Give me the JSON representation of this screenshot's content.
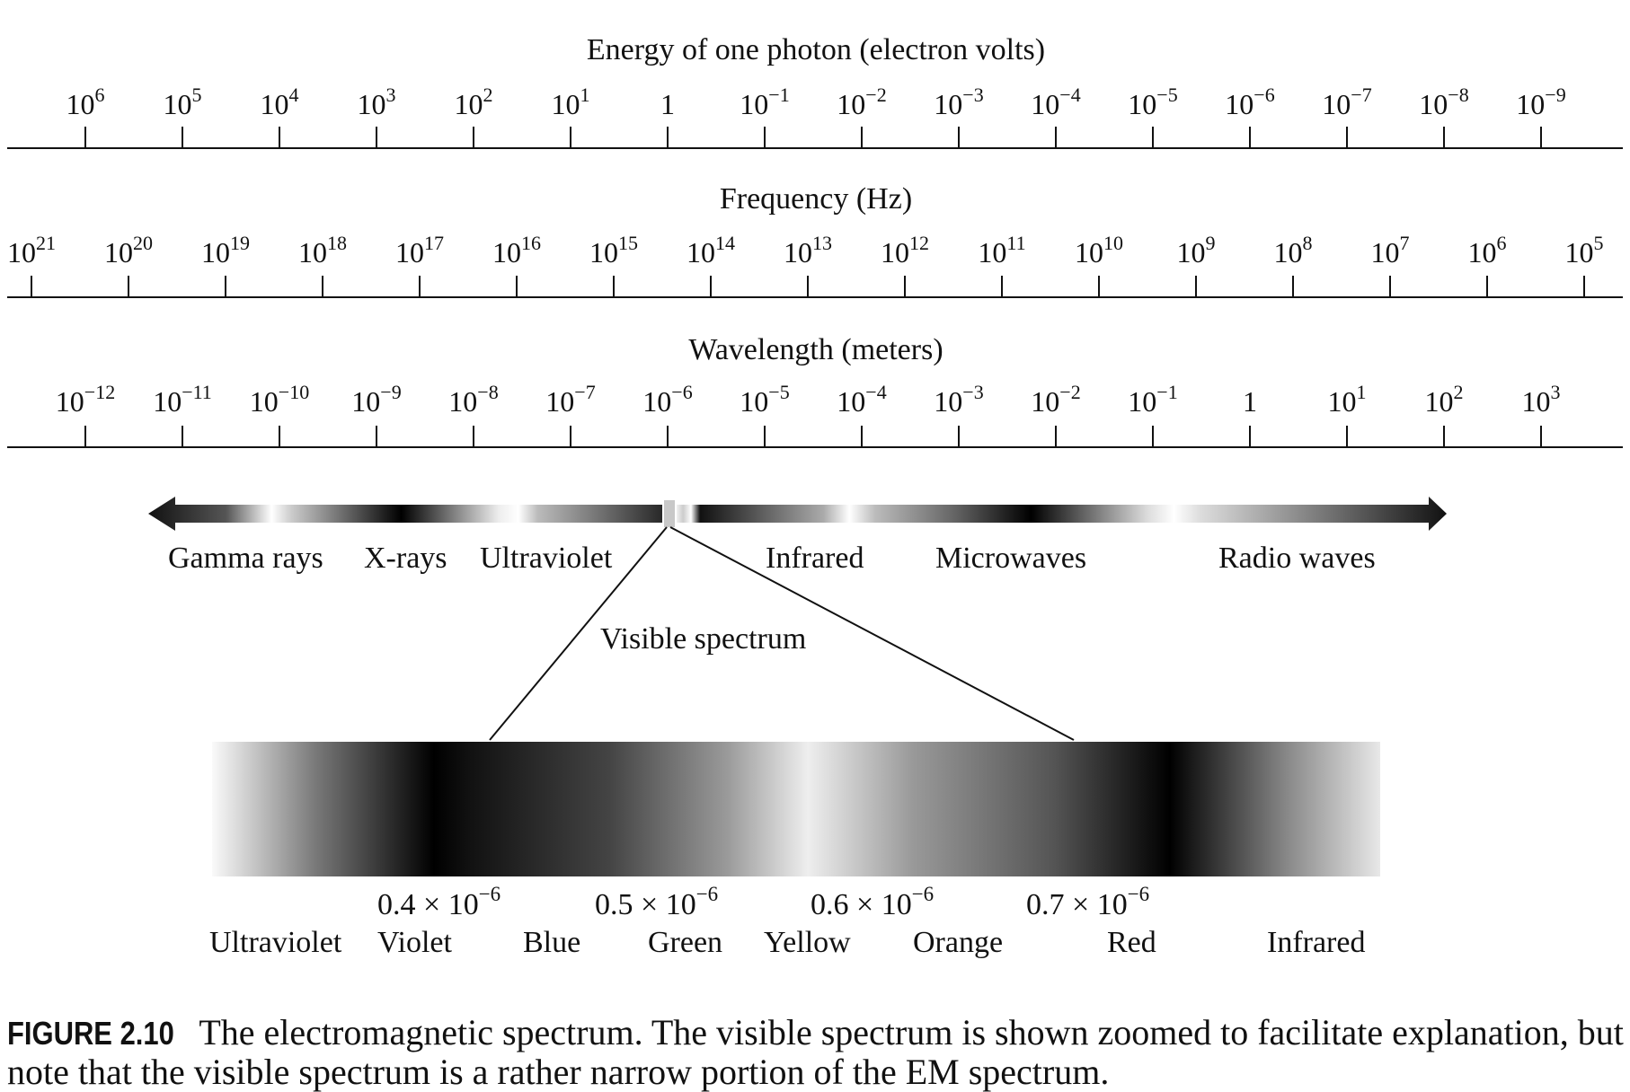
{
  "scales": {
    "energy": {
      "title": "Energy of one photon (electron volts)",
      "ticks": [
        {
          "base": "10",
          "exp": "6"
        },
        {
          "base": "10",
          "exp": "5"
        },
        {
          "base": "10",
          "exp": "4"
        },
        {
          "base": "10",
          "exp": "3"
        },
        {
          "base": "10",
          "exp": "2"
        },
        {
          "base": "10",
          "exp": "1"
        },
        {
          "base": "1",
          "exp": ""
        },
        {
          "base": "10",
          "exp": "−1"
        },
        {
          "base": "10",
          "exp": "−2"
        },
        {
          "base": "10",
          "exp": "−3"
        },
        {
          "base": "10",
          "exp": "−4"
        },
        {
          "base": "10",
          "exp": "−5"
        },
        {
          "base": "10",
          "exp": "−6"
        },
        {
          "base": "10",
          "exp": "−7"
        },
        {
          "base": "10",
          "exp": "−8"
        },
        {
          "base": "10",
          "exp": "−9"
        }
      ]
    },
    "frequency": {
      "title": "Frequency (Hz)",
      "ticks": [
        {
          "base": "10",
          "exp": "21"
        },
        {
          "base": "10",
          "exp": "20"
        },
        {
          "base": "10",
          "exp": "19"
        },
        {
          "base": "10",
          "exp": "18"
        },
        {
          "base": "10",
          "exp": "17"
        },
        {
          "base": "10",
          "exp": "16"
        },
        {
          "base": "10",
          "exp": "15"
        },
        {
          "base": "10",
          "exp": "14"
        },
        {
          "base": "10",
          "exp": "13"
        },
        {
          "base": "10",
          "exp": "12"
        },
        {
          "base": "10",
          "exp": "11"
        },
        {
          "base": "10",
          "exp": "10"
        },
        {
          "base": "10",
          "exp": "9"
        },
        {
          "base": "10",
          "exp": "8"
        },
        {
          "base": "10",
          "exp": "7"
        },
        {
          "base": "10",
          "exp": "6"
        },
        {
          "base": "10",
          "exp": "5"
        }
      ]
    },
    "wavelength": {
      "title": "Wavelength (meters)",
      "ticks": [
        {
          "base": "10",
          "exp": "−12"
        },
        {
          "base": "10",
          "exp": "−11"
        },
        {
          "base": "10",
          "exp": "−10"
        },
        {
          "base": "10",
          "exp": "−9"
        },
        {
          "base": "10",
          "exp": "−8"
        },
        {
          "base": "10",
          "exp": "−7"
        },
        {
          "base": "10",
          "exp": "−6"
        },
        {
          "base": "10",
          "exp": "−5"
        },
        {
          "base": "10",
          "exp": "−4"
        },
        {
          "base": "10",
          "exp": "−3"
        },
        {
          "base": "10",
          "exp": "−2"
        },
        {
          "base": "10",
          "exp": "−1"
        },
        {
          "base": "1",
          "exp": ""
        },
        {
          "base": "10",
          "exp": "1"
        },
        {
          "base": "10",
          "exp": "2"
        },
        {
          "base": "10",
          "exp": "3"
        }
      ]
    }
  },
  "spectrum": {
    "bands": [
      "Gamma rays",
      "X-rays",
      "Ultraviolet",
      "Infrared",
      "Microwaves",
      "Radio waves"
    ],
    "visible_label": "Visible spectrum"
  },
  "visible": {
    "wavelength_marks": [
      {
        "mantissa": "0.4",
        "times": "×",
        "base": "10",
        "exp": "−6"
      },
      {
        "mantissa": "0.5",
        "times": "×",
        "base": "10",
        "exp": "−6"
      },
      {
        "mantissa": "0.6",
        "times": "×",
        "base": "10",
        "exp": "−6"
      },
      {
        "mantissa": "0.7",
        "times": "×",
        "base": "10",
        "exp": "−6"
      }
    ],
    "colors": [
      "Ultraviolet",
      "Violet",
      "Blue",
      "Green",
      "Yellow",
      "Orange",
      "Red",
      "Infrared"
    ]
  },
  "caption": {
    "label": "FIGURE 2.10",
    "text": "The electromagnetic spectrum. The visible spectrum is shown zoomed to facilitate explanation, but note that the visible spectrum is a rather narrow portion of the EM spectrum."
  }
}
